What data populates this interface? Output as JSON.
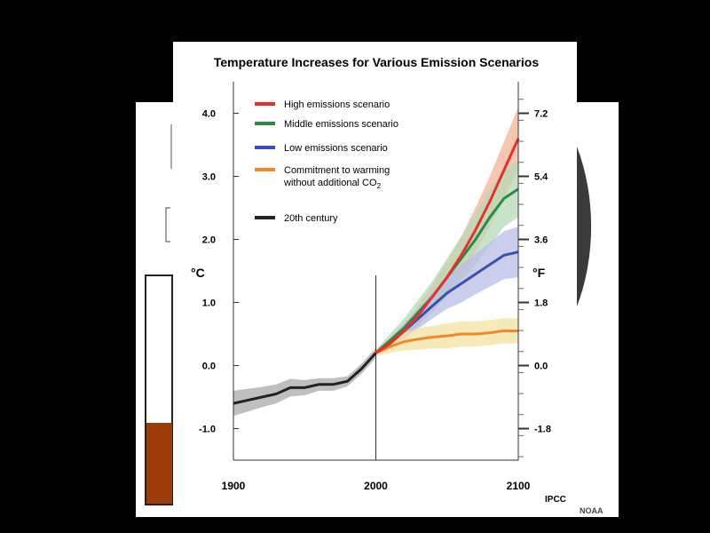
{
  "chart_data": {
    "type": "line",
    "title": "Temperature Increases for Various Emission Scenarios",
    "ylabel_left": "°C",
    "ylabel_right": "°F",
    "xlim": [
      1900,
      2100
    ],
    "ylim": [
      -1.5,
      4.5
    ],
    "x_ticks": [
      "1900",
      "2000",
      "2100"
    ],
    "y_ticks_left": [
      "4.0",
      "3.0",
      "2.0",
      "1.0",
      "0.0",
      "-1.0"
    ],
    "y_ticks_right": [
      "7.2",
      "5.4",
      "3.6",
      "1.8",
      "0.0",
      "-1.8"
    ],
    "credits": [
      "IPCC",
      "NOAA"
    ],
    "series": [
      {
        "name": "High emissions scenario",
        "color": "#e8302a",
        "band": "#f3b39a",
        "x": [
          2000,
          2010,
          2020,
          2030,
          2040,
          2050,
          2060,
          2070,
          2080,
          2090,
          2100
        ],
        "values": [
          0.2,
          0.35,
          0.55,
          0.8,
          1.1,
          1.4,
          1.75,
          2.15,
          2.6,
          3.1,
          3.6
        ],
        "spread": [
          0.05,
          0.08,
          0.12,
          0.16,
          0.2,
          0.25,
          0.3,
          0.35,
          0.4,
          0.45,
          0.5
        ]
      },
      {
        "name": "Middle emissions scenario",
        "color": "#2a8a48",
        "band": "#b5d9b5",
        "x": [
          2000,
          2010,
          2020,
          2030,
          2040,
          2050,
          2060,
          2070,
          2080,
          2090,
          2100
        ],
        "values": [
          0.2,
          0.4,
          0.6,
          0.85,
          1.1,
          1.4,
          1.7,
          2.0,
          2.35,
          2.65,
          2.8
        ],
        "spread": [
          0.05,
          0.1,
          0.15,
          0.2,
          0.25,
          0.3,
          0.35,
          0.4,
          0.45,
          0.45,
          0.45
        ]
      },
      {
        "name": "Low emissions scenario",
        "color": "#3a4fb0",
        "band": "#b7bde6",
        "x": [
          2000,
          2010,
          2020,
          2030,
          2040,
          2050,
          2060,
          2070,
          2080,
          2090,
          2100
        ],
        "values": [
          0.2,
          0.35,
          0.55,
          0.75,
          0.95,
          1.15,
          1.3,
          1.45,
          1.6,
          1.75,
          1.8
        ],
        "spread": [
          0.05,
          0.08,
          0.12,
          0.16,
          0.2,
          0.25,
          0.3,
          0.32,
          0.35,
          0.38,
          0.4
        ]
      },
      {
        "name": "Commitment to warming",
        "name2": "without additional CO",
        "sub": "2",
        "color": "#f08a24",
        "band": "#f6e3a0",
        "x": [
          2000,
          2010,
          2020,
          2030,
          2040,
          2050,
          2060,
          2070,
          2080,
          2090,
          2100
        ],
        "values": [
          0.2,
          0.3,
          0.38,
          0.42,
          0.45,
          0.47,
          0.5,
          0.5,
          0.52,
          0.55,
          0.55
        ],
        "spread": [
          0.05,
          0.1,
          0.14,
          0.17,
          0.18,
          0.2,
          0.2,
          0.2,
          0.2,
          0.2,
          0.2
        ]
      },
      {
        "name": "20th century",
        "color": "#222222",
        "band": "#aaaaaa",
        "x": [
          1900,
          1910,
          1920,
          1930,
          1940,
          1950,
          1960,
          1970,
          1980,
          1990,
          2000
        ],
        "values": [
          -0.6,
          -0.55,
          -0.5,
          -0.45,
          -0.35,
          -0.35,
          -0.3,
          -0.3,
          -0.25,
          -0.05,
          0.2
        ],
        "spread": [
          0.2,
          0.18,
          0.16,
          0.15,
          0.14,
          0.12,
          0.1,
          0.1,
          0.08,
          0.08,
          0.08
        ]
      }
    ]
  }
}
